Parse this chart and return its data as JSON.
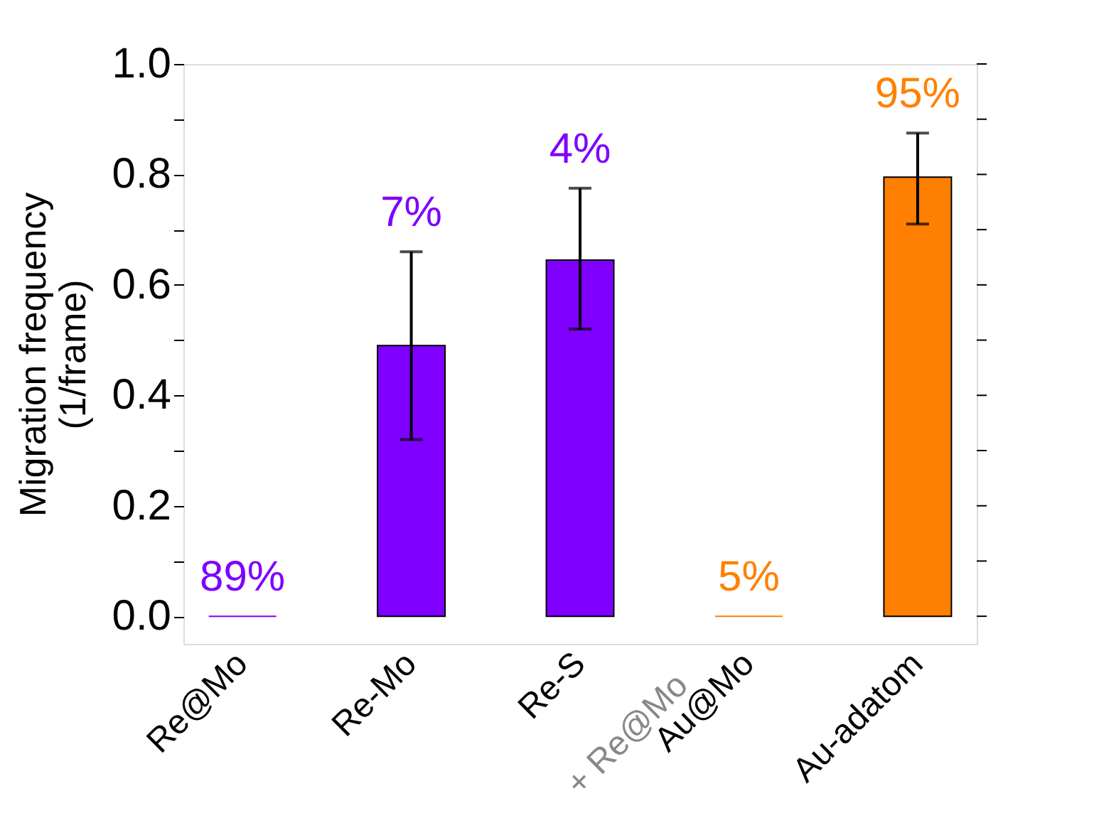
{
  "chart_data": {
    "type": "bar",
    "ylabel": "Migration frequency\n(1/frame)",
    "categories": [
      "Re@Mo",
      "Re-Mo",
      "Re-S",
      "Au@Mo",
      "Au-adatom"
    ],
    "values": [
      0,
      0.49,
      0.645,
      0,
      0.795
    ],
    "errors": [
      null,
      [
        0.32,
        0.66
      ],
      [
        0.52,
        0.775
      ],
      null,
      [
        0.71,
        0.875
      ]
    ],
    "colors": [
      "#7f00ff",
      "#7f00ff",
      "#7f00ff",
      "#ff8000",
      "#ff8000"
    ],
    "annotations": [
      {
        "text": "89%",
        "x": "Re@Mo",
        "y": 0
      },
      {
        "text": "7%",
        "x": "Re-Mo",
        "y": 0.66
      },
      {
        "text": "4%",
        "x": "Re-S",
        "y": 0.775
      },
      {
        "text": "5%",
        "x": "Au@Mo",
        "y": 0
      },
      {
        "text": "95%",
        "x": "Au-adatom",
        "y": 0.875
      },
      "+ Re@Mo"
    ],
    "ylim": [
      -0.05,
      1.0
    ],
    "yticks": [
      {
        "value": 0,
        "label": "0.0"
      },
      {
        "value": 0.1,
        "label": null
      },
      {
        "value": 0.2,
        "label": "0.2"
      },
      {
        "value": 0.3,
        "label": null
      },
      {
        "value": 0.4,
        "label": "0.4"
      },
      {
        "value": 0.5,
        "label": null
      },
      {
        "value": 0.6,
        "label": "0.6"
      },
      {
        "value": 0.7,
        "label": null
      },
      {
        "value": 0.8,
        "label": "0.8"
      },
      {
        "value": 0.9,
        "label": null
      },
      {
        "value": 1.0,
        "label": "1.0"
      }
    ],
    "grid": false
  }
}
